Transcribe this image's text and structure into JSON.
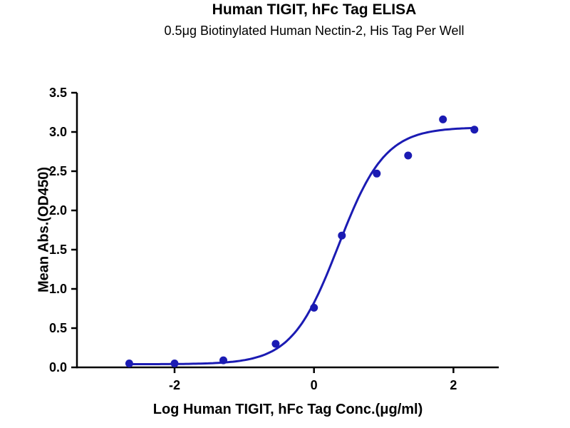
{
  "chart_data": {
    "type": "scatter",
    "title": "Human TIGIT, hFc Tag ELISA",
    "subtitle": "0.5μg Biotinylated Human Nectin-2, His Tag Per Well",
    "xlabel": "Log Human TIGIT, hFc Tag Conc.(μg/ml)",
    "ylabel": "Mean Abs.(OD450)",
    "xlim": [
      -3.4,
      2.65
    ],
    "ylim": [
      0,
      3.5
    ],
    "x_ticks": [
      -2,
      0,
      2
    ],
    "y_ticks": [
      0,
      0.5,
      1,
      1.5,
      2,
      2.5,
      3,
      3.5
    ],
    "grid": false,
    "legend": false,
    "color": "#1b1bb3",
    "points": [
      [
        -2.65,
        0.05
      ],
      [
        -2.0,
        0.05
      ],
      [
        -1.3,
        0.09
      ],
      [
        -0.55,
        0.3
      ],
      [
        0.0,
        0.76
      ],
      [
        0.4,
        1.68
      ],
      [
        0.9,
        2.47
      ],
      [
        1.35,
        2.7
      ],
      [
        1.85,
        3.16
      ],
      [
        2.3,
        3.03
      ]
    ],
    "fit_curve": {
      "model": "4PL",
      "bottom": 0.04,
      "top": 3.06,
      "logEC50": 0.35,
      "hillslope": 1.3,
      "x_range": [
        -2.65,
        2.3
      ]
    }
  }
}
